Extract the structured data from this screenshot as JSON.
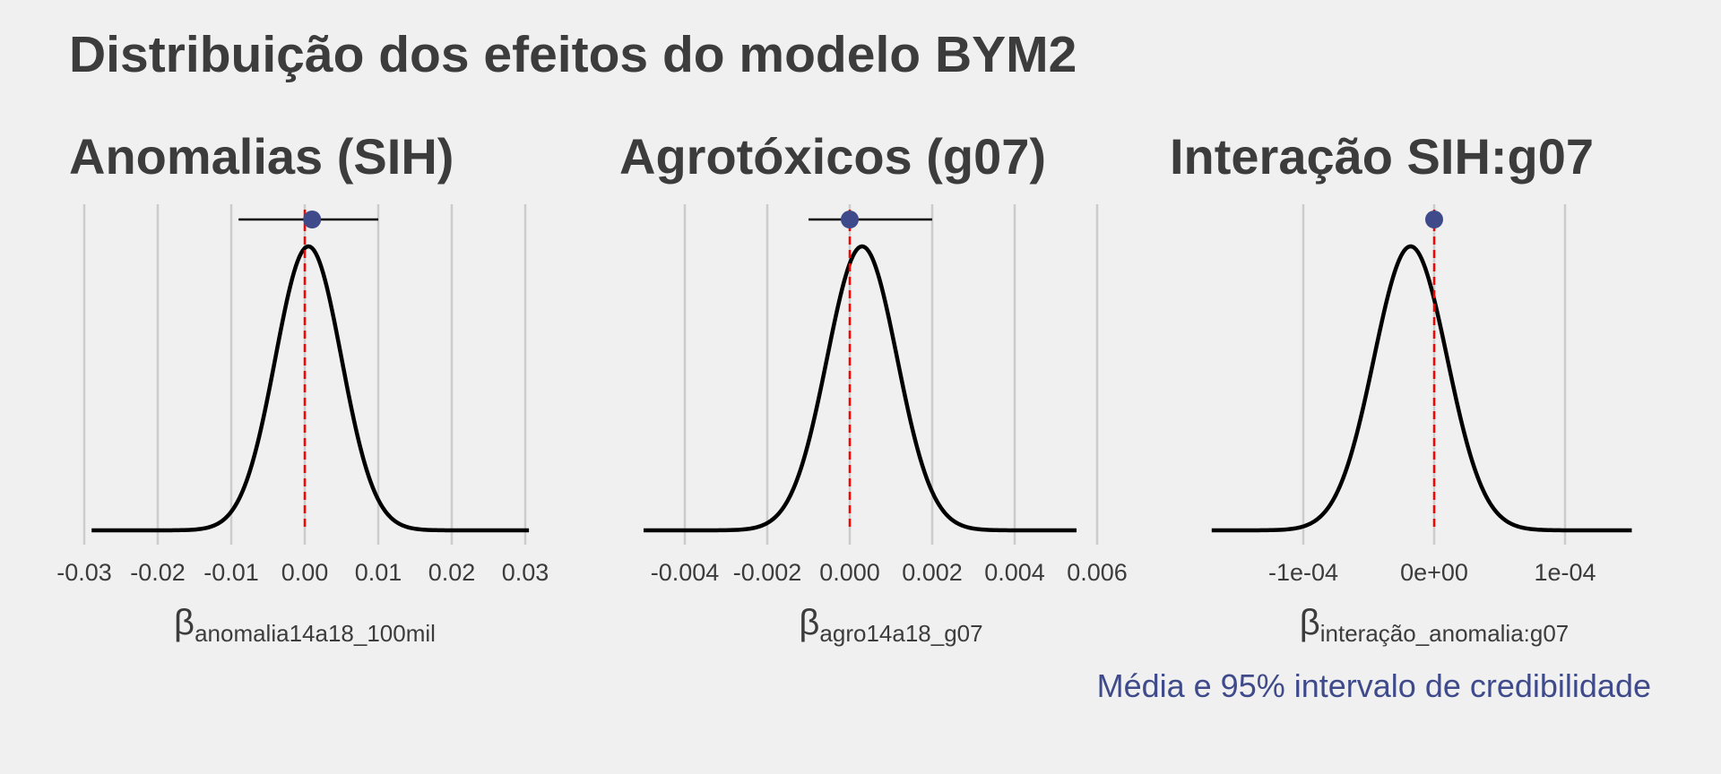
{
  "title": "Distribuição dos efeitos do modelo BYM2",
  "caption": "Média e 95% intervalo de credibilidade",
  "colors": {
    "background": "#f0f0f0",
    "text": "#3c3c3c",
    "grid": "#cccccc",
    "density_curve": "#000000",
    "zero_line": "#ff0000",
    "point": "#3f4a8a",
    "caption": "#3f4a8a"
  },
  "chart_data": [
    {
      "type": "density",
      "title": "Anomalias (SIH)",
      "xlabel_symbol": "β",
      "xlabel_subscript": "anomalia14a18_100mil",
      "xlim": [
        -0.03,
        0.03
      ],
      "x_ticks": [
        -0.03,
        -0.02,
        -0.01,
        0.0,
        0.01,
        0.02,
        0.03
      ],
      "x_tick_labels": [
        "-0.03",
        "-0.02",
        "-0.01",
        "0.00",
        "0.01",
        "0.02",
        "0.03"
      ],
      "grid": true,
      "density": {
        "mean": 0.0005,
        "sd": 0.0045,
        "x_range": [
          -0.029,
          0.0305
        ]
      },
      "mean": 0.001,
      "ci95": [
        -0.009,
        0.01
      ],
      "reference_line": 0
    },
    {
      "type": "density",
      "title": "Agrotóxicos (g07)",
      "xlabel_symbol": "β",
      "xlabel_subscript": "agro14a18_g07",
      "xlim": [
        -0.005,
        0.006
      ],
      "x_ticks": [
        -0.004,
        -0.002,
        0.0,
        0.002,
        0.004,
        0.006
      ],
      "x_tick_labels": [
        "-0.004",
        "-0.002",
        "0.000",
        "0.002",
        "0.004",
        "0.006"
      ],
      "grid": true,
      "density": {
        "mean": 0.0003,
        "sd": 0.00085,
        "x_range": [
          -0.005,
          0.0055
        ]
      },
      "mean": 0.0,
      "ci95": [
        -0.001,
        0.002
      ],
      "reference_line": 0
    },
    {
      "type": "density",
      "title": "Interação SIH:g07",
      "xlabel_symbol": "β",
      "xlabel_subscript": "interação_anomalia:g07",
      "xlim": [
        -0.00019,
        0.000155
      ],
      "x_ticks": [
        -0.0001,
        0.0,
        0.0001
      ],
      "x_tick_labels": [
        "-1e-04",
        "0e+00",
        "1e-04"
      ],
      "grid": true,
      "density": {
        "mean": -1.8e-05,
        "sd": 2.8e-05,
        "x_range": [
          -0.00017,
          0.000151
        ]
      },
      "mean": 0.0,
      "ci95": [
        0.0,
        0.0
      ],
      "reference_line": 0
    }
  ]
}
